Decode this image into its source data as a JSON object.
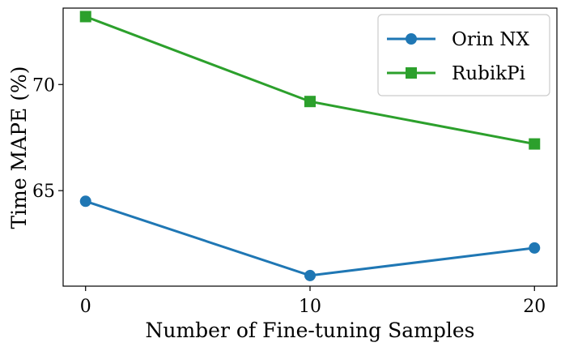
{
  "chart_data": {
    "type": "line",
    "title": "",
    "xlabel": "Number of Fine-tuning Samples",
    "ylabel": "Time MAPE (%)",
    "x": [
      0,
      10,
      20
    ],
    "xticks": [
      0,
      10,
      20
    ],
    "yticks": [
      65,
      70
    ],
    "xlim": [
      -1,
      21
    ],
    "ylim": [
      60.5,
      73.6
    ],
    "grid": false,
    "legend": "top-right",
    "series": [
      {
        "name": "Orin NX",
        "values": [
          64.5,
          61.0,
          62.3
        ],
        "color": "#1f77b4",
        "marker": "circle"
      },
      {
        "name": "RubikPi",
        "values": [
          73.2,
          69.2,
          67.2
        ],
        "color": "#2ca02c",
        "marker": "square"
      }
    ]
  }
}
